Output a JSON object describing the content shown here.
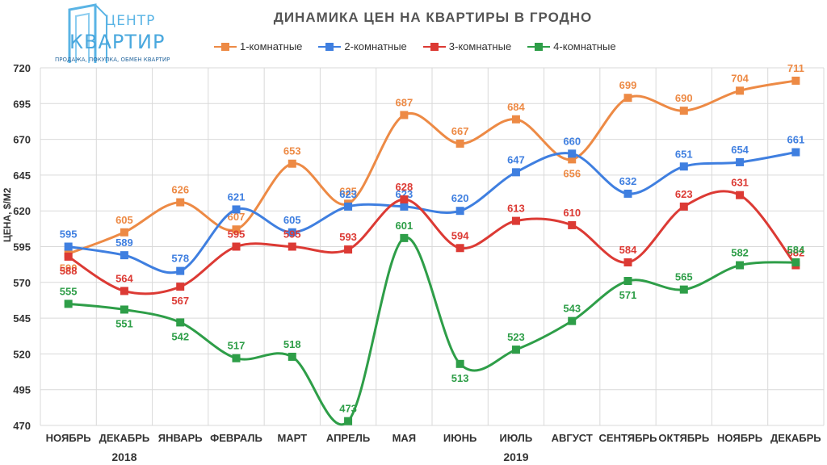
{
  "logo": {
    "line1": "ЦЕНТР",
    "line2": "КВАРТИР",
    "tagline": "ПРОДАЖА, ПОКУПКА, ОБМЕН КВАРТИР"
  },
  "chart_data": {
    "type": "line",
    "title": "ДИНАМИКА ЦЕН НА КВАРТИРЫ В ГРОДНО",
    "ylabel": "ЦЕНА, $/М2",
    "xlabel": "",
    "categories": [
      "НОЯБРЬ",
      "ДЕКАБРЬ",
      "ЯНВАРЬ",
      "ФЕВРАЛЬ",
      "МАРТ",
      "АПРЕЛЬ",
      "МАЯ",
      "ИЮНЬ",
      "ИЮЛЬ",
      "АВГУСТ",
      "СЕНТЯБРЬ",
      "ОКТЯБРЬ",
      "НОЯБРЬ",
      "ДЕКАБРЬ"
    ],
    "years": [
      {
        "label": "2018",
        "under": 1
      },
      {
        "label": "2019",
        "under": 8
      }
    ],
    "ylim": [
      470,
      720
    ],
    "yticks": [
      470,
      495,
      520,
      545,
      570,
      595,
      620,
      645,
      670,
      695,
      720
    ],
    "grid": true,
    "legend_position": "top",
    "series": [
      {
        "name": "1-комнатные",
        "color": "#ed8a45",
        "values": [
          590,
          605,
          626,
          607,
          653,
          625,
          687,
          667,
          684,
          656,
          699,
          690,
          704,
          711
        ]
      },
      {
        "name": "2-комнатные",
        "color": "#3f7fe0",
        "values": [
          595,
          589,
          578,
          621,
          605,
          623,
          623,
          620,
          647,
          660,
          632,
          651,
          654,
          661
        ]
      },
      {
        "name": "3-комнатные",
        "color": "#dc3a34",
        "values": [
          588,
          564,
          567,
          595,
          595,
          593,
          628,
          594,
          613,
          610,
          584,
          623,
          631,
          582
        ]
      },
      {
        "name": "4-комнатные",
        "color": "#2e9e48",
        "values": [
          555,
          551,
          542,
          517,
          518,
          473,
          601,
          513,
          523,
          543,
          571,
          565,
          582,
          584
        ]
      }
    ]
  }
}
